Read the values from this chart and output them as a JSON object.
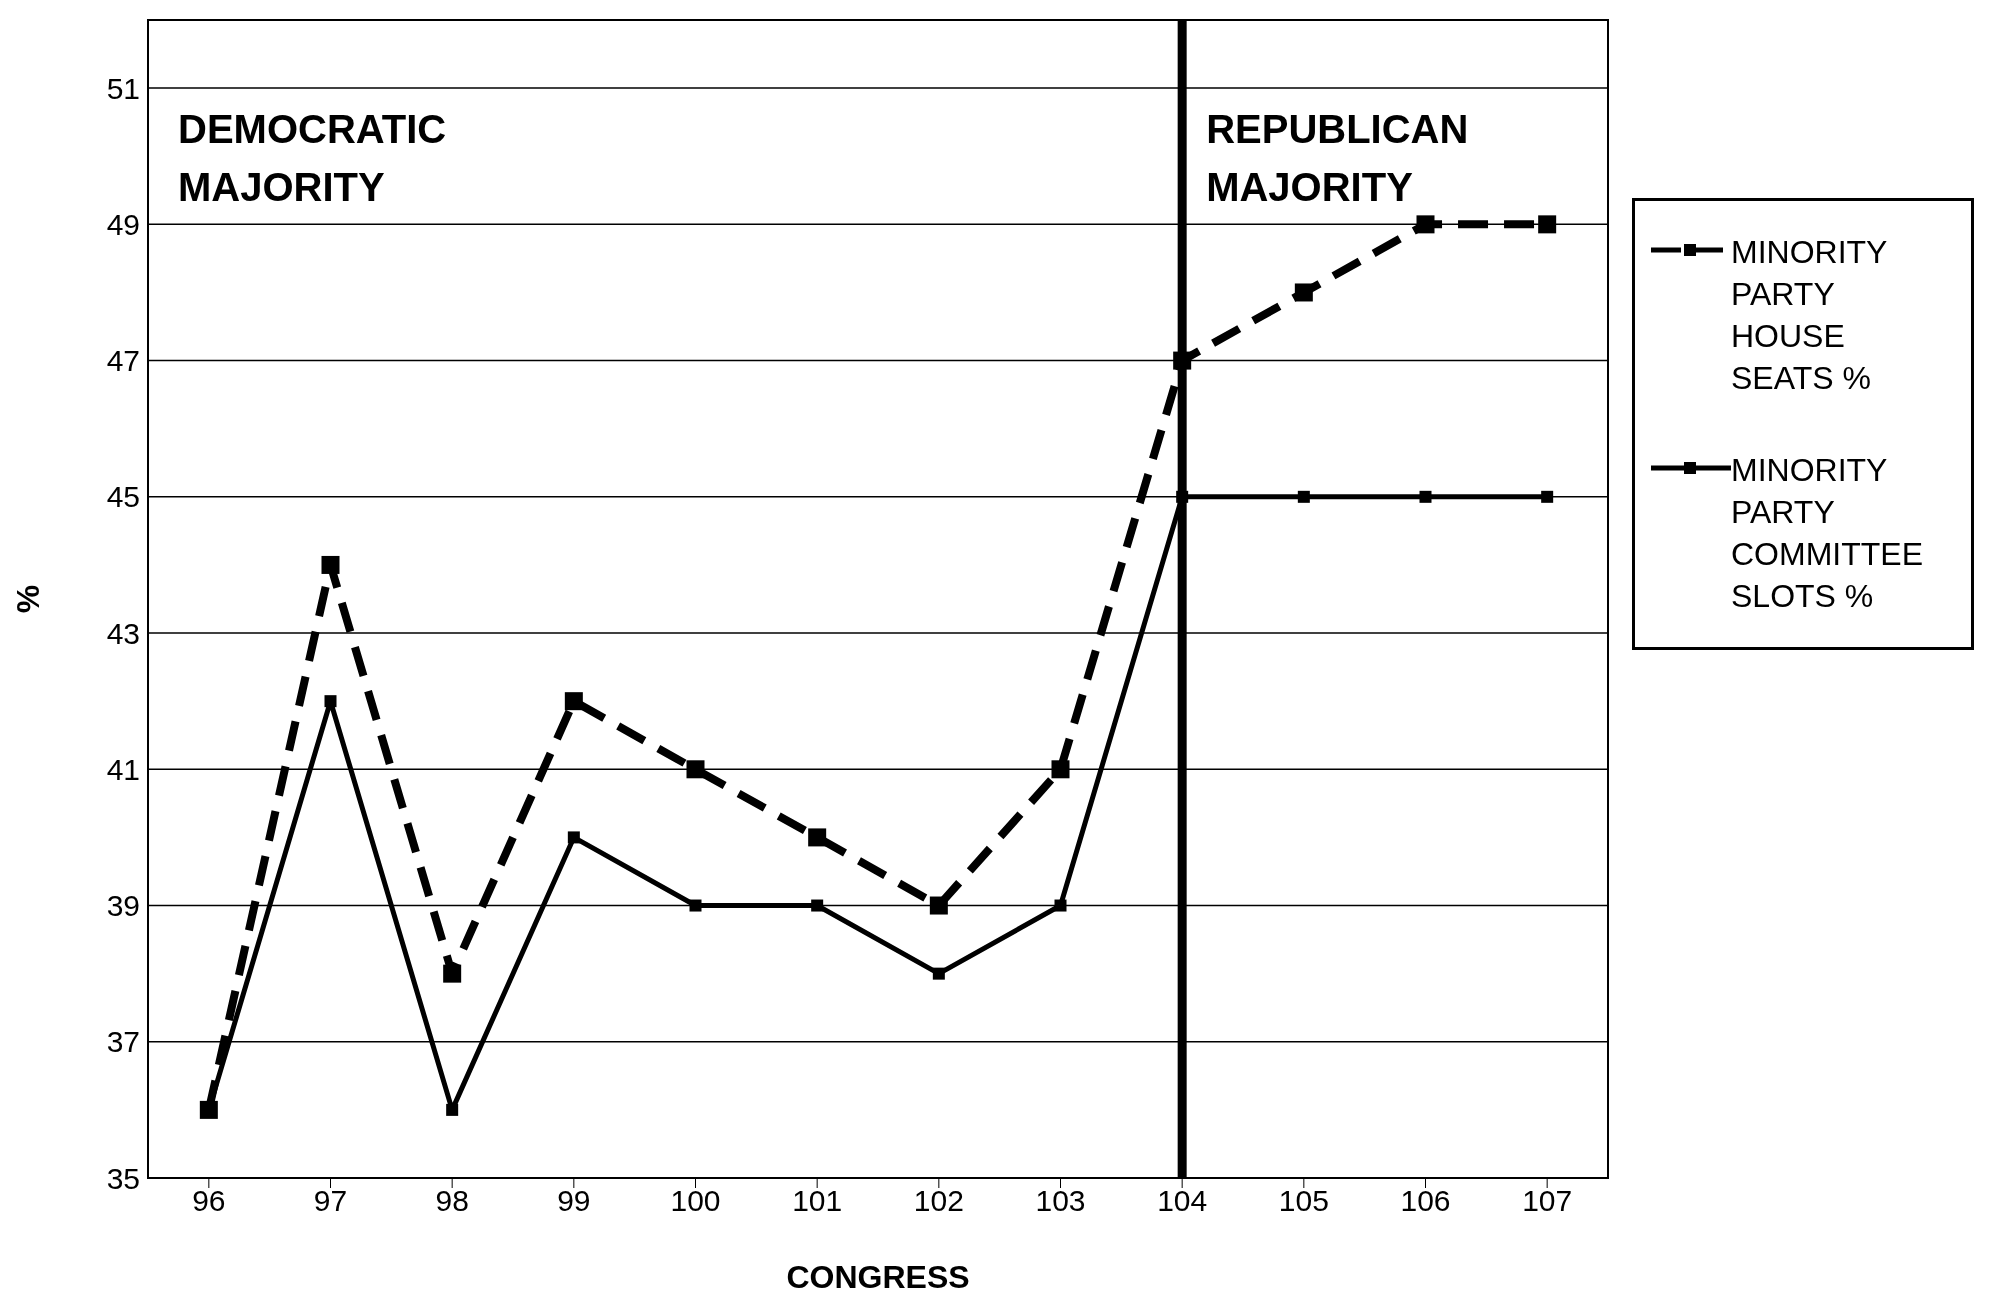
{
  "chart_data": {
    "type": "line",
    "xlabel": "CONGRESS",
    "ylabel": "%",
    "x": [
      96,
      97,
      98,
      99,
      100,
      101,
      102,
      103,
      104,
      105,
      106,
      107
    ],
    "xlim": [
      95.5,
      107.5
    ],
    "xticks": [
      96,
      97,
      98,
      99,
      100,
      101,
      102,
      103,
      104,
      105,
      106,
      107
    ],
    "ylim": [
      35,
      52
    ],
    "yticks": [
      35,
      37,
      39,
      41,
      43,
      45,
      47,
      49,
      51
    ],
    "series": [
      {
        "name": "MINORITY PARTY HOUSE SEATS %",
        "color": "#000000",
        "line_style": "dashed",
        "values": [
          36,
          44,
          38,
          42,
          41,
          40,
          39,
          41,
          47,
          48,
          49,
          49
        ]
      },
      {
        "name": "MINORITY PARTY COMMITTEE SLOTS %",
        "color": "#000000",
        "line_style": "solid",
        "values": [
          36,
          42,
          36,
          40,
          39,
          39,
          38,
          39,
          45,
          45,
          45,
          45
        ]
      }
    ],
    "ref_lines": [
      {
        "axis": "x",
        "value": 104,
        "color": "#000000"
      }
    ],
    "annotations": [
      "DEMOCRATIC MAJORITY",
      "REPUBLICAN MAJORITY"
    ],
    "grid": "y",
    "legend": "right",
    "marker": "square"
  }
}
